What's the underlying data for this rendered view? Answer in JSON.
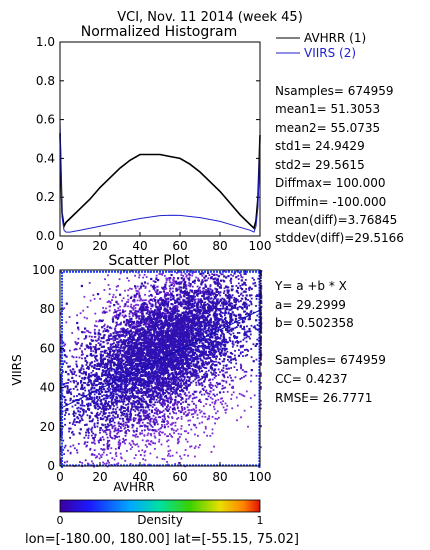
{
  "header": {
    "title": "VCI,  Nov. 11 2014 (week 45)",
    "footer": "lon=[-180.00, 180.00] lat=[-55.15, 75.02]"
  },
  "chart_data": [
    {
      "type": "line",
      "title": "Normalized Histogram",
      "xlim": [
        0,
        100
      ],
      "ylim": [
        0.0,
        1.0
      ],
      "xticks": [
        "0",
        "20",
        "40",
        "60",
        "80",
        "100"
      ],
      "yticks": [
        "0.0",
        "0.2",
        "0.4",
        "0.6",
        "0.8",
        "1.0"
      ],
      "legend": {
        "position": "right",
        "entries": [
          "AVHRR (1)",
          "VIIRS (2)"
        ]
      },
      "colors": {
        "avhrr": "#000000",
        "viirs": "#1f1fd0"
      },
      "series": [
        {
          "name": "AVHRR (1)",
          "x": [
            0,
            1,
            2,
            3,
            5,
            10,
            15,
            20,
            25,
            30,
            35,
            40,
            45,
            50,
            55,
            60,
            65,
            70,
            75,
            80,
            85,
            90,
            95,
            97,
            98,
            99,
            100
          ],
          "y": [
            0.53,
            0.12,
            0.05,
            0.07,
            0.09,
            0.14,
            0.19,
            0.25,
            0.3,
            0.35,
            0.39,
            0.42,
            0.42,
            0.42,
            0.41,
            0.4,
            0.37,
            0.33,
            0.28,
            0.23,
            0.17,
            0.11,
            0.06,
            0.04,
            0.08,
            0.2,
            0.52
          ]
        },
        {
          "name": "VIIRS (2)",
          "x": [
            0,
            1,
            2,
            3,
            5,
            10,
            20,
            30,
            40,
            50,
            55,
            60,
            70,
            80,
            90,
            95,
            97,
            98,
            99,
            100
          ],
          "y": [
            0.6,
            0.1,
            0.03,
            0.02,
            0.02,
            0.03,
            0.05,
            0.07,
            0.09,
            0.105,
            0.107,
            0.106,
            0.095,
            0.075,
            0.045,
            0.03,
            0.02,
            0.05,
            0.15,
            0.5
          ]
        }
      ]
    },
    {
      "type": "scatter",
      "title": "Scatter Plot",
      "xlabel": "AVHRR",
      "ylabel": "VIIRS",
      "xlim": [
        0,
        100
      ],
      "ylim": [
        0,
        100
      ],
      "xticks": [
        "0",
        "20",
        "40",
        "60",
        "80",
        "100"
      ],
      "yticks": [
        "0",
        "20",
        "40",
        "60",
        "80",
        "100"
      ],
      "regression": {
        "a": 29.2999,
        "b": 0.502358
      },
      "colorbar": {
        "label": "Density",
        "min_label": "0",
        "max_label": "1"
      }
    }
  ],
  "stats_top": [
    "Nsamples= 674959",
    "mean1=      51.3053",
    "mean2=      55.0735",
    "std1=        24.9429",
    "std2=        29.5615",
    "Diffmax=    100.000",
    "Diffmin=    -100.000",
    "mean(diff)=3.76845",
    "stddev(diff)=29.5166"
  ],
  "stats_bottom": [
    "Y= a +b * X",
    "a= 29.2999",
    "b= 0.502358",
    "",
    "Samples= 674959",
    "CC=  0.4237",
    "RMSE= 26.7771"
  ]
}
